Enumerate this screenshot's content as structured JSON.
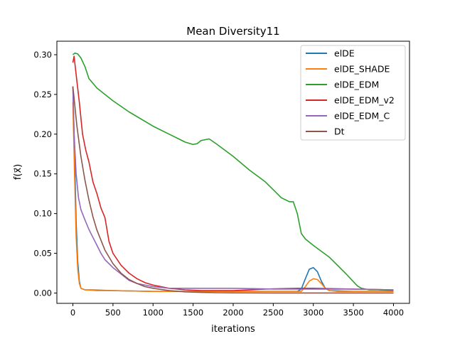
{
  "chart_data": {
    "type": "line",
    "title": "Mean Diversity11",
    "xlabel": "iterations",
    "ylabel": "f(x⃗)",
    "xlim": [
      -200,
      4200
    ],
    "ylim": [
      -0.013,
      0.317
    ],
    "xticks": [
      0,
      500,
      1000,
      1500,
      2000,
      2500,
      3000,
      3500,
      4000
    ],
    "xtick_labels": [
      "0",
      "500",
      "1000",
      "1500",
      "2000",
      "2500",
      "3000",
      "3500",
      "4000"
    ],
    "yticks": [
      0.0,
      0.05,
      0.1,
      0.15,
      0.2,
      0.25,
      0.3
    ],
    "ytick_labels": [
      "0.00",
      "0.05",
      "0.10",
      "0.15",
      "0.20",
      "0.25",
      "0.30"
    ],
    "grid": false,
    "legend_position": "top-right",
    "series": [
      {
        "name": "elDE",
        "color": "#1f77b4",
        "x": [
          0,
          20,
          40,
          60,
          80,
          100,
          150,
          200,
          500,
          1000,
          1500,
          2000,
          2500,
          2800,
          2850,
          2900,
          2950,
          3000,
          3050,
          3100,
          3150,
          3200,
          3500,
          4000
        ],
        "y": [
          0.26,
          0.18,
          0.09,
          0.04,
          0.015,
          0.006,
          0.004,
          0.004,
          0.003,
          0.002,
          0.002,
          0.002,
          0.002,
          0.002,
          0.005,
          0.018,
          0.03,
          0.032,
          0.027,
          0.015,
          0.006,
          0.003,
          0.002,
          0.002
        ]
      },
      {
        "name": "elDE_SHADE",
        "color": "#ff7f0e",
        "x": [
          0,
          20,
          40,
          60,
          80,
          100,
          150,
          300,
          500,
          1000,
          1500,
          2000,
          2500,
          2850,
          2900,
          2950,
          3000,
          3050,
          3100,
          3150,
          3200,
          3300,
          4000
        ],
        "y": [
          0.24,
          0.15,
          0.07,
          0.03,
          0.012,
          0.006,
          0.004,
          0.003,
          0.003,
          0.002,
          0.002,
          0.002,
          0.002,
          0.002,
          0.008,
          0.015,
          0.018,
          0.017,
          0.012,
          0.006,
          0.003,
          0.002,
          0.002
        ]
      },
      {
        "name": "elDE_EDM",
        "color": "#2ca02c",
        "x": [
          0,
          25,
          60,
          100,
          150,
          200,
          300,
          500,
          700,
          1000,
          1200,
          1400,
          1500,
          1550,
          1600,
          1700,
          1800,
          2000,
          2200,
          2400,
          2500,
          2600,
          2700,
          2750,
          2800,
          2850,
          2900,
          3000,
          3200,
          3400,
          3550,
          3600,
          3700,
          3800,
          4000
        ],
        "y": [
          0.3,
          0.302,
          0.301,
          0.296,
          0.285,
          0.27,
          0.258,
          0.242,
          0.228,
          0.21,
          0.2,
          0.19,
          0.187,
          0.188,
          0.192,
          0.194,
          0.187,
          0.172,
          0.155,
          0.14,
          0.13,
          0.12,
          0.115,
          0.115,
          0.1,
          0.075,
          0.068,
          0.06,
          0.045,
          0.025,
          0.009,
          0.006,
          0.004,
          0.004,
          0.003
        ]
      },
      {
        "name": "elDE_EDM_v2",
        "color": "#d62728",
        "x": [
          0,
          15,
          40,
          80,
          120,
          160,
          200,
          250,
          300,
          350,
          400,
          450,
          500,
          600,
          700,
          800,
          900,
          1000,
          1200,
          1400,
          1600,
          2000,
          2400,
          2800,
          3000,
          3500,
          4000
        ],
        "y": [
          0.29,
          0.298,
          0.275,
          0.24,
          0.2,
          0.18,
          0.165,
          0.14,
          0.125,
          0.107,
          0.095,
          0.065,
          0.05,
          0.035,
          0.025,
          0.018,
          0.013,
          0.01,
          0.006,
          0.004,
          0.003,
          0.003,
          0.005,
          0.006,
          0.006,
          0.005,
          0.004
        ]
      },
      {
        "name": "elDE_EDM_C",
        "color": "#9467bd",
        "x": [
          0,
          15,
          40,
          70,
          100,
          150,
          200,
          250,
          300,
          350,
          400,
          500,
          600,
          700,
          800,
          1000,
          1200,
          1500,
          2000,
          2500,
          3000,
          3500,
          4000
        ],
        "y": [
          0.26,
          0.2,
          0.15,
          0.12,
          0.105,
          0.092,
          0.08,
          0.07,
          0.06,
          0.05,
          0.042,
          0.032,
          0.024,
          0.016,
          0.012,
          0.008,
          0.006,
          0.006,
          0.006,
          0.005,
          0.005,
          0.005,
          0.004
        ]
      },
      {
        "name": "Dt",
        "color": "#8c564b",
        "x": [
          0,
          50,
          100,
          150,
          200,
          250,
          300,
          400,
          500,
          600,
          700,
          800,
          900,
          1000,
          1200,
          1400,
          1600,
          1800,
          2000,
          2500,
          3000,
          4000
        ],
        "y": [
          0.26,
          0.21,
          0.172,
          0.142,
          0.117,
          0.096,
          0.079,
          0.054,
          0.037,
          0.025,
          0.017,
          0.012,
          0.008,
          0.006,
          0.003,
          0.0015,
          0.0008,
          0.0004,
          0.0002,
          0.0001,
          0.0001,
          0.0001
        ]
      }
    ]
  }
}
